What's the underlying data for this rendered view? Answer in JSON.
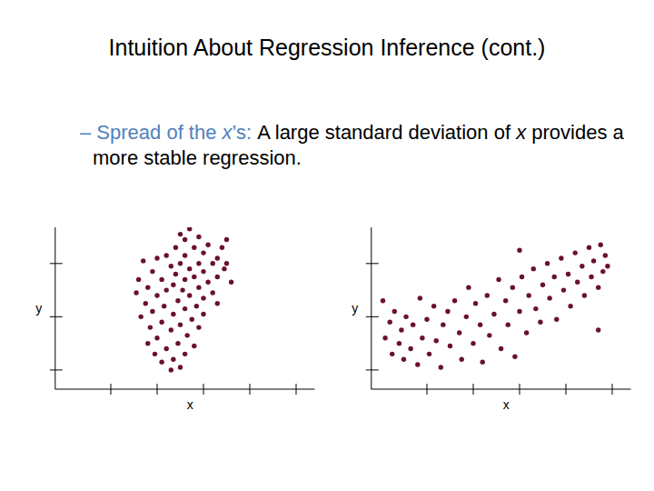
{
  "slide": {
    "title": "Intuition About Regression Inference (cont.)",
    "bullet": {
      "lead": "– Spread of the x’s:",
      "text": "A large standard deviation of x provides a more stable regression."
    }
  },
  "chart_data": [
    {
      "type": "scatter",
      "xlabel": "x",
      "ylabel": "y",
      "color": "#6b1030",
      "marker": "circle",
      "tick_labels": false,
      "xlim": [
        -0.2,
        5.4
      ],
      "ylim": [
        0.64,
        3.68
      ],
      "xticks": [
        1,
        2,
        3,
        4,
        5
      ],
      "yticks": [
        1,
        2,
        3
      ],
      "x": [
        2.7,
        2.5,
        2.6,
        2.9,
        3.1,
        3.4,
        2.4,
        2.8,
        3.0,
        2.2,
        2.6,
        3.3,
        2.0,
        1.7,
        2.5,
        2.9,
        3.2,
        3.5,
        2.3,
        2.7,
        3.0,
        1.9,
        2.4,
        2.8,
        3.3,
        1.6,
        2.1,
        2.6,
        3.1,
        3.6,
        2.35,
        2.9,
        1.8,
        2.2,
        2.55,
        3.2,
        1.55,
        2.0,
        2.7,
        3.0,
        2.45,
        1.75,
        2.15,
        2.85,
        3.3,
        2.6,
        1.9,
        2.35,
        3.0,
        1.65,
        2.75,
        2.1,
        2.5,
        1.85,
        2.9,
        2.3,
        2.65,
        2.0,
        1.8,
        2.45,
        2.8,
        2.2,
        1.95,
        2.6,
        2.35,
        2.1,
        2.5,
        2.3,
        3.45,
        3.5
      ],
      "values": [
        3.65,
        3.55,
        3.45,
        3.5,
        3.35,
        3.3,
        3.3,
        3.3,
        3.2,
        3.15,
        3.15,
        3.1,
        3.1,
        3.05,
        3.0,
        3.0,
        3.0,
        3.0,
        2.95,
        2.9,
        2.85,
        2.85,
        2.8,
        2.75,
        2.75,
        2.7,
        2.7,
        2.7,
        2.65,
        2.65,
        2.6,
        2.55,
        2.55,
        2.5,
        2.5,
        2.45,
        2.45,
        2.4,
        2.4,
        2.35,
        2.3,
        2.25,
        2.2,
        2.2,
        2.25,
        2.15,
        2.1,
        2.05,
        2.05,
        2.0,
        1.95,
        1.9,
        1.85,
        1.8,
        1.8,
        1.75,
        1.65,
        1.6,
        1.5,
        1.5,
        1.45,
        1.4,
        1.3,
        1.3,
        1.2,
        1.15,
        1.05,
        1.0,
        2.9,
        3.45
      ]
    },
    {
      "type": "scatter",
      "xlabel": "x",
      "ylabel": "y",
      "color": "#6b1030",
      "marker": "circle",
      "tick_labels": false,
      "xlim": [
        -0.2,
        5.4
      ],
      "ylim": [
        0.64,
        3.68
      ],
      "xticks": [
        1,
        2,
        3,
        4,
        5
      ],
      "yticks": [
        1,
        2,
        3
      ],
      "x": [
        0.05,
        0.1,
        0.2,
        0.25,
        0.3,
        0.4,
        0.45,
        0.5,
        0.55,
        0.65,
        0.7,
        0.8,
        0.85,
        0.9,
        1.0,
        1.05,
        1.15,
        1.2,
        1.3,
        1.35,
        1.45,
        1.5,
        1.6,
        1.7,
        1.75,
        1.85,
        1.9,
        2.0,
        2.05,
        2.15,
        2.2,
        2.3,
        2.35,
        2.45,
        2.55,
        2.6,
        2.7,
        2.75,
        2.85,
        2.9,
        3.0,
        3.05,
        3.15,
        3.2,
        3.3,
        3.35,
        3.45,
        3.5,
        3.6,
        3.65,
        3.75,
        3.8,
        3.9,
        3.95,
        4.05,
        4.1,
        4.2,
        4.25,
        4.35,
        4.4,
        4.5,
        4.55,
        4.6,
        4.7,
        4.75,
        4.8,
        4.85,
        4.9,
        4.7,
        3.0
      ],
      "values": [
        2.3,
        1.6,
        1.9,
        1.3,
        2.1,
        1.5,
        1.75,
        1.2,
        2.0,
        1.4,
        1.85,
        1.1,
        2.35,
        1.6,
        1.95,
        1.3,
        2.2,
        1.55,
        1.05,
        1.85,
        2.1,
        1.45,
        2.3,
        1.7,
        1.2,
        2.0,
        2.55,
        1.5,
        2.25,
        1.85,
        1.15,
        2.4,
        1.65,
        2.05,
        2.7,
        1.4,
        2.3,
        1.85,
        2.55,
        1.25,
        2.1,
        2.75,
        1.7,
        2.4,
        2.9,
        2.15,
        1.9,
        2.6,
        3.0,
        2.35,
        2.75,
        1.95,
        3.1,
        2.5,
        2.8,
        2.2,
        3.2,
        2.65,
        2.95,
        2.4,
        3.3,
        2.75,
        3.05,
        2.55,
        3.35,
        2.85,
        3.15,
        2.95,
        1.75,
        3.25
      ]
    }
  ]
}
